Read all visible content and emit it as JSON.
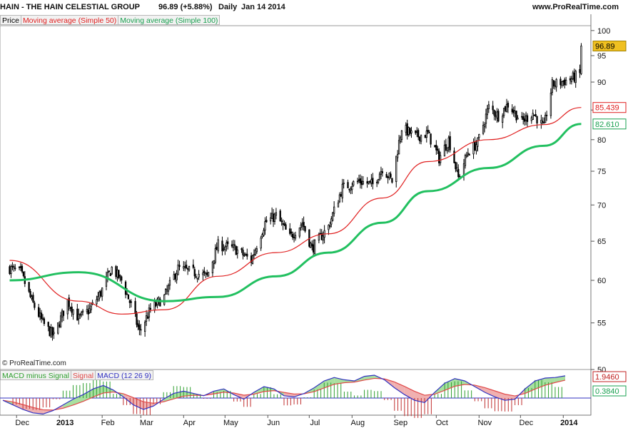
{
  "header": {
    "ticker": "HAIN - THE HAIN CELESTIAL GROUP",
    "quote": "96.89 (+5.88%)",
    "period": "Daily",
    "date": "Jan 14 2014",
    "site": "www.ProRealTime.com"
  },
  "legend": {
    "price": "Price",
    "ma50": "Moving average (Simple 50)",
    "ma100": "Moving average (Simple 100)"
  },
  "macd_legend": {
    "hist": "MACD minus Signal",
    "signal": "Signal",
    "macd": "MACD (12 26 9)"
  },
  "copyright": "© ProRealTime.com",
  "colors": {
    "ma50": "#e02020",
    "ma100": "#22c060",
    "candle_up": "#ffffff",
    "candle_down": "#000000",
    "macd": "#3030c0",
    "signal": "#e04848",
    "hist": "#30a030",
    "last_price_bg": "#f0c020"
  },
  "chart_data": {
    "type": "candlestick",
    "y_axis": {
      "range": [
        50,
        101
      ],
      "ticks": [
        50,
        55,
        60,
        65,
        70,
        75,
        80,
        85,
        90,
        95,
        100
      ],
      "scale": "log"
    },
    "x_axis": {
      "labels": [
        "Dec",
        "2013",
        "Feb",
        "Mar",
        "Apr",
        "May",
        "Jun",
        "Jul",
        "Aug",
        "Sep",
        "Oct",
        "Nov",
        "Dec",
        "2014"
      ]
    },
    "price_anchors": [
      {
        "date": "2012-11-26",
        "close": 61.5
      },
      {
        "date": "2012-12-04",
        "close": 61.0
      },
      {
        "date": "2012-12-12",
        "close": 57.5
      },
      {
        "date": "2012-12-20",
        "close": 55.0
      },
      {
        "date": "2012-12-28",
        "close": 53.5
      },
      {
        "date": "2013-01-07",
        "close": 57.5
      },
      {
        "date": "2013-01-15",
        "close": 55.5
      },
      {
        "date": "2013-01-23",
        "close": 56.5
      },
      {
        "date": "2013-01-31",
        "close": 58.5
      },
      {
        "date": "2013-02-08",
        "close": 61.5
      },
      {
        "date": "2013-02-15",
        "close": 60.0
      },
      {
        "date": "2013-02-22",
        "close": 57.0
      },
      {
        "date": "2013-02-28",
        "close": 54.0
      },
      {
        "date": "2013-03-08",
        "close": 56.5
      },
      {
        "date": "2013-03-18",
        "close": 58.0
      },
      {
        "date": "2013-03-28",
        "close": 61.5
      },
      {
        "date": "2013-04-08",
        "close": 61.0
      },
      {
        "date": "2013-04-18",
        "close": 60.5
      },
      {
        "date": "2013-04-26",
        "close": 64.5
      },
      {
        "date": "2013-05-08",
        "close": 64.0
      },
      {
        "date": "2013-05-20",
        "close": 62.5
      },
      {
        "date": "2013-05-30",
        "close": 67.5
      },
      {
        "date": "2013-06-07",
        "close": 68.5
      },
      {
        "date": "2013-06-17",
        "close": 65.5
      },
      {
        "date": "2013-06-26",
        "close": 67.5
      },
      {
        "date": "2013-07-03",
        "close": 64.0
      },
      {
        "date": "2013-07-15",
        "close": 67.0
      },
      {
        "date": "2013-07-25",
        "close": 72.5
      },
      {
        "date": "2013-08-06",
        "close": 73.5
      },
      {
        "date": "2013-08-16",
        "close": 73.0
      },
      {
        "date": "2013-08-23",
        "close": 75.5
      },
      {
        "date": "2013-08-30",
        "close": 73.5
      },
      {
        "date": "2013-09-06",
        "close": 82.0
      },
      {
        "date": "2013-09-16",
        "close": 80.5
      },
      {
        "date": "2013-09-25",
        "close": 81.0
      },
      {
        "date": "2013-10-03",
        "close": 77.0
      },
      {
        "date": "2013-10-10",
        "close": 80.0
      },
      {
        "date": "2013-10-17",
        "close": 74.0
      },
      {
        "date": "2013-10-24",
        "close": 78.0
      },
      {
        "date": "2013-10-31",
        "close": 79.5
      },
      {
        "date": "2013-11-08",
        "close": 85.5
      },
      {
        "date": "2013-11-15",
        "close": 84.0
      },
      {
        "date": "2013-11-22",
        "close": 86.0
      },
      {
        "date": "2013-12-02",
        "close": 83.0
      },
      {
        "date": "2013-12-10",
        "close": 84.5
      },
      {
        "date": "2013-12-18",
        "close": 82.0
      },
      {
        "date": "2013-12-24",
        "close": 89.5
      },
      {
        "date": "2014-01-06",
        "close": 90.5
      },
      {
        "date": "2014-01-13",
        "close": 91.5
      },
      {
        "date": "2014-01-14",
        "close": 96.89
      }
    ],
    "series": [
      {
        "name": "Moving average (Simple 50)",
        "points": [
          [
            "2012-11-26",
            62.5
          ],
          [
            "2013-01-15",
            57.5
          ],
          [
            "2013-02-15",
            56.0
          ],
          [
            "2013-03-18",
            56.5
          ],
          [
            "2013-04-26",
            60.5
          ],
          [
            "2013-06-07",
            63.5
          ],
          [
            "2013-07-15",
            66.0
          ],
          [
            "2013-08-23",
            71.0
          ],
          [
            "2013-09-25",
            76.5
          ],
          [
            "2013-11-08",
            80.0
          ],
          [
            "2013-12-18",
            82.5
          ],
          [
            "2014-01-14",
            85.439
          ]
        ]
      },
      {
        "name": "Moving average (Simple 100)",
        "points": [
          [
            "2012-11-26",
            60.0
          ],
          [
            "2013-01-15",
            61.0
          ],
          [
            "2013-03-18",
            57.5
          ],
          [
            "2013-04-26",
            58.0
          ],
          [
            "2013-06-07",
            60.5
          ],
          [
            "2013-07-15",
            63.5
          ],
          [
            "2013-08-23",
            67.5
          ],
          [
            "2013-09-25",
            72.0
          ],
          [
            "2013-11-08",
            75.5
          ],
          [
            "2013-12-18",
            79.0
          ],
          [
            "2014-01-14",
            82.61
          ]
        ]
      }
    ],
    "last_values": {
      "price": "96.89",
      "ma50": "85.439",
      "ma100": "82.610"
    },
    "macd": {
      "range": [
        -1.5,
        2.5
      ],
      "labels": {
        "macd": "1.9460",
        "hist": "0.3840"
      },
      "values": [
        -0.2,
        -0.6,
        -1.0,
        -1.3,
        -1.4,
        -1.1,
        -0.6,
        -0.1,
        0.3,
        0.8,
        1.1,
        0.7,
        0.1,
        -0.6,
        -1.0,
        -0.7,
        -0.1,
        0.4,
        0.6,
        0.4,
        0.2,
        0.6,
        0.8,
        0.3,
        -0.1,
        0.5,
        1.0,
        0.8,
        0.2,
        0.1,
        0.4,
        0.9,
        1.5,
        1.8,
        1.6,
        1.5,
        1.9,
        2.0,
        1.6,
        0.9,
        0.3,
        -0.2,
        -0.4,
        0.5,
        1.3,
        1.7,
        1.5,
        1.0,
        0.5,
        0.1,
        -0.2,
        -0.1,
        0.8,
        1.5,
        1.75,
        1.8,
        1.946
      ]
    }
  }
}
